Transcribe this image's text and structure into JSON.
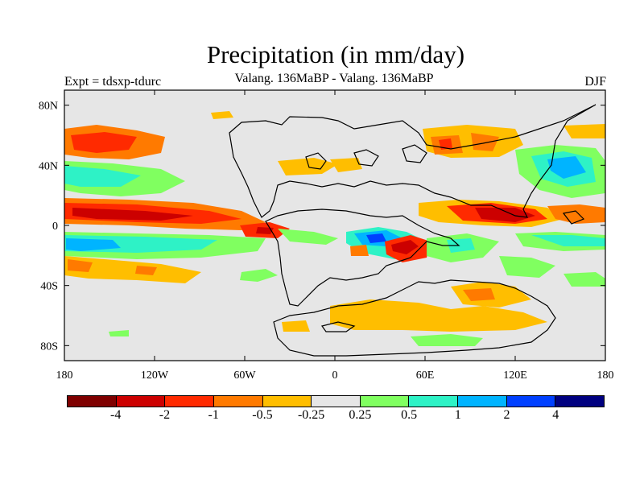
{
  "title": "Precipitation (in mm/day)",
  "subtitle": "Valang. 136MaBP - Valang.  136MaBP",
  "experiment_label": "Expt = tdsxp-tdurc",
  "season": "DJF",
  "chart_data": {
    "type": "heatmap",
    "title": "Precipitation (in mm/day)",
    "subtitle": "Valang. 136MaBP - Valang.  136MaBP",
    "lon_range": [
      -180,
      180
    ],
    "lat_range": [
      -90,
      90
    ],
    "x_ticks": [
      "180",
      "120W",
      "60W",
      "0",
      "60E",
      "120E",
      "180"
    ],
    "x_tick_values": [
      -180,
      -120,
      -60,
      0,
      60,
      120,
      180
    ],
    "y_ticks": [
      "80N",
      "40N",
      "0",
      "40S",
      "80S"
    ],
    "y_tick_values": [
      80,
      40,
      0,
      -40,
      -80
    ],
    "colorbar": {
      "labels": [
        "-4",
        "-2",
        "-1",
        "-0.5",
        "-0.25",
        "0.25",
        "0.5",
        "1",
        "2",
        "4"
      ],
      "colors": [
        "#7f0000",
        "#cc0000",
        "#ff2a00",
        "#ff7a00",
        "#ffbe00",
        "#e6e6e6",
        "#80ff60",
        "#2ef2c6",
        "#00b4ff",
        "#0040ff",
        "#000080"
      ]
    }
  }
}
